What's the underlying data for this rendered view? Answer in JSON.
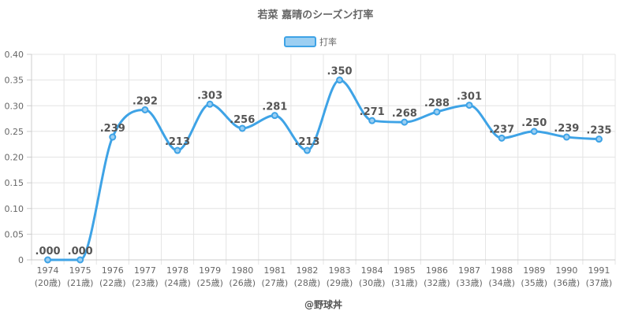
{
  "chart_data": {
    "type": "line",
    "title": "若菜 嘉晴のシーズン打率",
    "categories": [
      "1974",
      "1975",
      "1976",
      "1977",
      "1978",
      "1979",
      "1980",
      "1981",
      "1982",
      "1983",
      "1984",
      "1985",
      "1986",
      "1987",
      "1988",
      "1989",
      "1990",
      "1991"
    ],
    "sublabels": [
      "(20歳)",
      "(21歳)",
      "(22歳)",
      "(23歳)",
      "(24歳)",
      "(25歳)",
      "(26歳)",
      "(27歳)",
      "(28歳)",
      "(29歳)",
      "(30歳)",
      "(31歳)",
      "(32歳)",
      "(33歳)",
      "(34歳)",
      "(35歳)",
      "(36歳)",
      "(37歳)"
    ],
    "series": [
      {
        "name": "打率",
        "values": [
          0,
          0,
          0.239,
          0.292,
          0.213,
          0.303,
          0.256,
          0.281,
          0.213,
          0.35,
          0.271,
          0.268,
          0.288,
          0.301,
          0.237,
          0.25,
          0.239,
          0.235
        ],
        "labels": [
          ".000",
          ".000",
          ".239",
          ".292",
          ".213",
          ".303",
          ".256",
          ".281",
          ".213",
          ".350",
          ".271",
          ".268",
          ".288",
          ".301",
          ".237",
          ".250",
          ".239",
          ".235"
        ],
        "color": "#3ea3e6",
        "fill": "#9ccff2"
      }
    ],
    "ylim": [
      0,
      0.4
    ],
    "yticks": [
      0,
      0.05,
      0.1,
      0.15,
      0.2,
      0.25,
      0.3,
      0.35,
      0.4
    ],
    "ytick_labels": [
      "0",
      "0.05",
      "0.10",
      "0.15",
      "0.20",
      "0.25",
      "0.30",
      "0.35",
      "0.40"
    ],
    "grid": true,
    "legend": "top-center",
    "credit": "@野球丼"
  }
}
